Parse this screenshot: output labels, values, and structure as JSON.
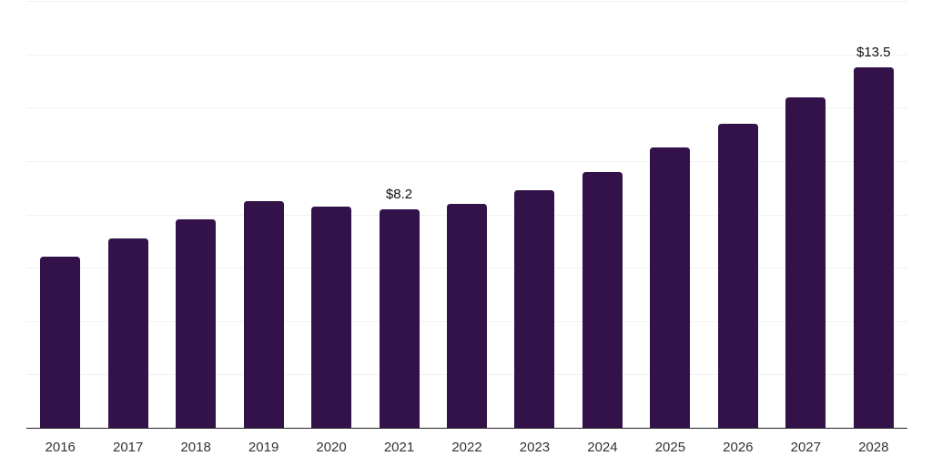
{
  "chart_data": {
    "type": "bar",
    "categories": [
      "2016",
      "2017",
      "2018",
      "2019",
      "2020",
      "2021",
      "2022",
      "2023",
      "2024",
      "2025",
      "2026",
      "2027",
      "2028"
    ],
    "values": [
      6.4,
      7.1,
      7.8,
      8.5,
      8.3,
      8.2,
      8.4,
      8.9,
      9.6,
      10.5,
      11.4,
      12.4,
      13.5
    ],
    "annotations": [
      {
        "category": "2021",
        "label": "$8.2"
      },
      {
        "category": "2028",
        "label": "$13.5"
      }
    ],
    "title": "",
    "xlabel": "",
    "ylabel": "",
    "ylim": [
      0,
      16
    ],
    "grid_step": 2,
    "grid_on": true,
    "legend_position": "none",
    "colors": {
      "bar": "#33124a",
      "gridline": "#f1f1f3",
      "axis_line": "#222222",
      "tick_label": "#333333",
      "value_label": "#111111"
    }
  }
}
